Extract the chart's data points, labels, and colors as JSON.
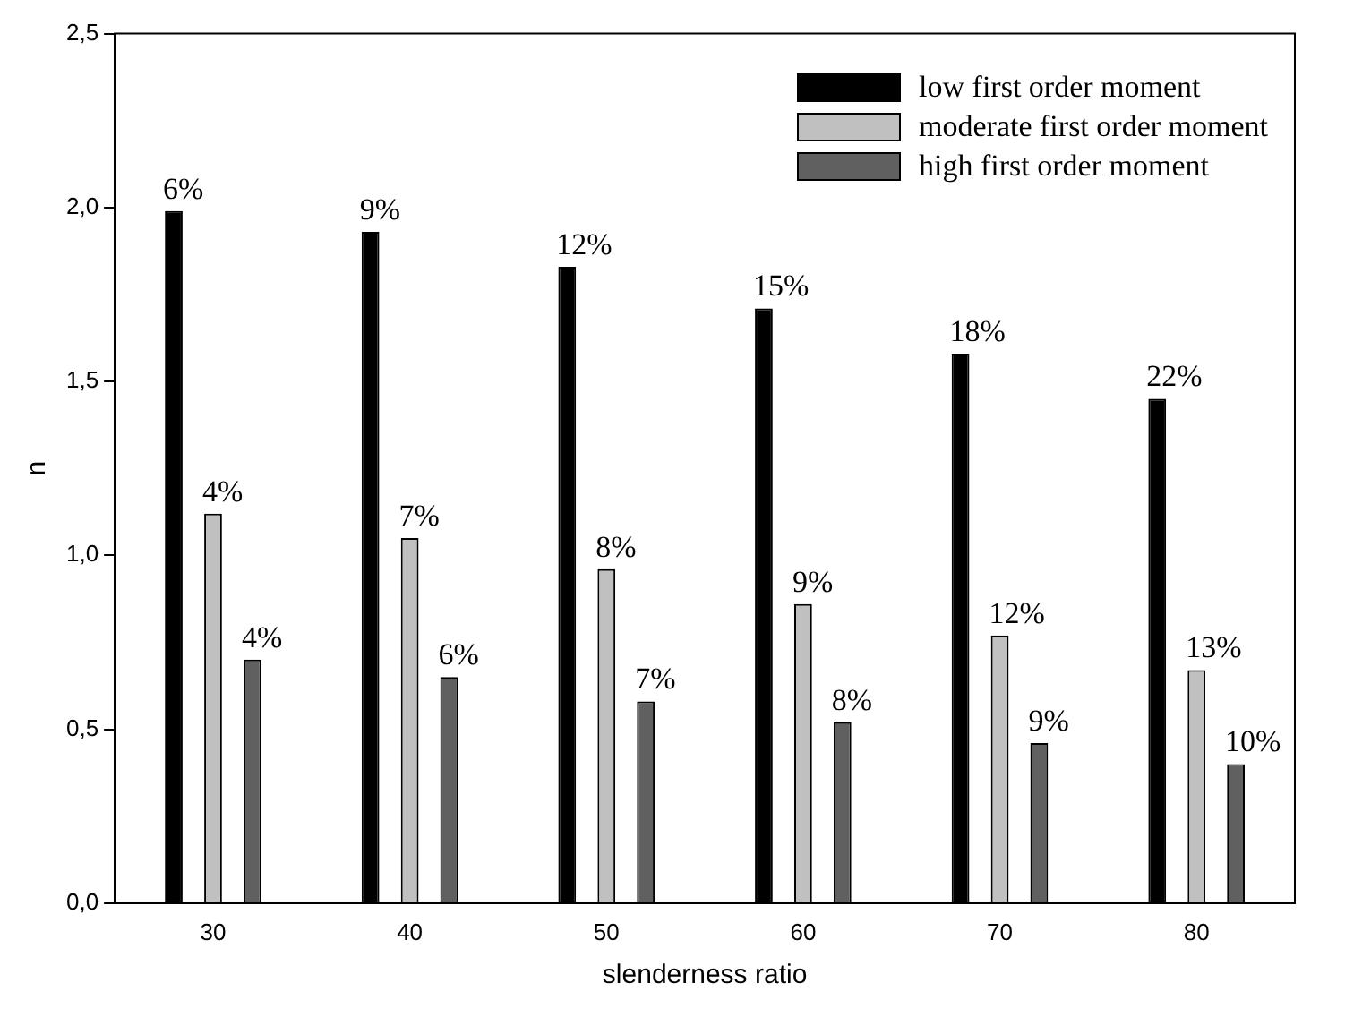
{
  "chart_data": {
    "type": "bar",
    "xlabel": "slenderness ratio",
    "ylabel": "n",
    "categories": [
      "30",
      "40",
      "50",
      "60",
      "70",
      "80"
    ],
    "series": [
      {
        "name": "low first order moment",
        "color": "#000000",
        "values": [
          1.99,
          1.93,
          1.83,
          1.71,
          1.58,
          1.45
        ]
      },
      {
        "name": "moderate first order moment",
        "color": "#c0c0c0",
        "values": [
          1.12,
          1.05,
          0.96,
          0.86,
          0.77,
          0.67
        ]
      },
      {
        "name": "high first order moment",
        "color": "#606060",
        "values": [
          0.7,
          0.65,
          0.58,
          0.52,
          0.46,
          0.4
        ]
      }
    ],
    "annotations": [
      "6%",
      "9%",
      "12%",
      "15%",
      "18%",
      "22%",
      "4%",
      "7%",
      "8%",
      "9%",
      "12%",
      "13%",
      "4%",
      "6%",
      "7%",
      "8%",
      "9%",
      "10%"
    ],
    "ylim": [
      0,
      2.5
    ],
    "yticks": [
      {
        "value": 0,
        "label": "0,0"
      },
      {
        "value": 0.5,
        "label": "0,5"
      },
      {
        "value": 1,
        "label": "1,0"
      },
      {
        "value": 1.5,
        "label": "1,5"
      },
      {
        "value": 2,
        "label": "2,0"
      },
      {
        "value": 2.5,
        "label": "2,5"
      }
    ],
    "grid": false,
    "legend": "top right"
  }
}
